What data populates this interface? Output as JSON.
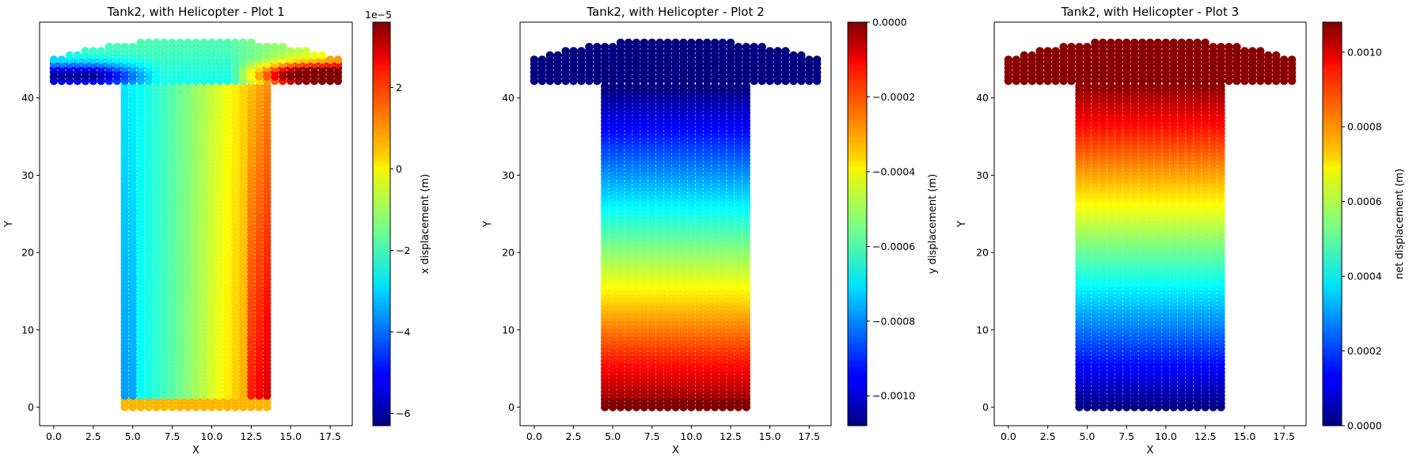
{
  "chart_data": [
    {
      "type": "scatter",
      "title": "Tank2, with Helicopter - Plot 1",
      "xlabel": "X",
      "ylabel": "Y",
      "xlim": [
        -0.9,
        18.9
      ],
      "ylim": [
        -2.4,
        49.8
      ],
      "xticks": [
        0.0,
        2.5,
        5.0,
        7.5,
        10.0,
        12.5,
        15.0,
        17.5
      ],
      "xtick_labels": [
        "0.0",
        "2.5",
        "5.0",
        "7.5",
        "10.0",
        "12.5",
        "15.0",
        "17.5"
      ],
      "yticks": [
        0,
        10,
        20,
        30,
        40
      ],
      "ytick_labels": [
        "0",
        "10",
        "20",
        "30",
        "40"
      ],
      "colorbar": {
        "label": "x displacement (m)",
        "min": -6.3e-05,
        "max": 3.6e-05,
        "ticks": [
          -6e-05,
          -4e-05,
          -2e-05,
          0,
          2e-05
        ],
        "tick_labels": [
          "−6",
          "−4",
          "−2",
          "0",
          "2"
        ],
        "offset_text": "1e−5",
        "colormap": "jet"
      },
      "field": "x_displacement",
      "shape": {
        "stem": {
          "x": [
            4.5,
            13.5
          ],
          "y": [
            0,
            41.5
          ]
        },
        "top": {
          "x": [
            0,
            18
          ],
          "y": [
            42.2,
            47.5
          ]
        }
      }
    },
    {
      "type": "scatter",
      "title": "Tank2, with Helicopter - Plot 2",
      "xlabel": "X",
      "ylabel": "Y",
      "xlim": [
        -0.9,
        18.9
      ],
      "ylim": [
        -2.4,
        49.8
      ],
      "xticks": [
        0.0,
        2.5,
        5.0,
        7.5,
        10.0,
        12.5,
        15.0,
        17.5
      ],
      "xtick_labels": [
        "0.0",
        "2.5",
        "5.0",
        "7.5",
        "10.0",
        "12.5",
        "15.0",
        "17.5"
      ],
      "yticks": [
        0,
        10,
        20,
        30,
        40
      ],
      "ytick_labels": [
        "0",
        "10",
        "20",
        "30",
        "40"
      ],
      "colorbar": {
        "label": "y displacement (m)",
        "min": -0.00108,
        "max": 0.0,
        "ticks": [
          -0.001,
          -0.0008,
          -0.0006,
          -0.0004,
          -0.0002,
          0.0
        ],
        "tick_labels": [
          "−0.0010",
          "−0.0008",
          "−0.0006",
          "−0.0004",
          "−0.0002",
          "0.0000"
        ],
        "offset_text": "",
        "colormap": "jet"
      },
      "field": "y_displacement",
      "shape": {
        "stem": {
          "x": [
            4.5,
            13.5
          ],
          "y": [
            0,
            41.5
          ]
        },
        "top": {
          "x": [
            0,
            18
          ],
          "y": [
            42.2,
            47.5
          ]
        }
      }
    },
    {
      "type": "scatter",
      "title": "Tank2, with Helicopter - Plot 3",
      "xlabel": "X",
      "ylabel": "Y",
      "xlim": [
        -0.9,
        18.9
      ],
      "ylim": [
        -2.4,
        49.8
      ],
      "xticks": [
        0.0,
        2.5,
        5.0,
        7.5,
        10.0,
        12.5,
        15.0,
        17.5
      ],
      "xtick_labels": [
        "0.0",
        "2.5",
        "5.0",
        "7.5",
        "10.0",
        "12.5",
        "15.0",
        "17.5"
      ],
      "yticks": [
        0,
        10,
        20,
        30,
        40
      ],
      "ytick_labels": [
        "0",
        "10",
        "20",
        "30",
        "40"
      ],
      "colorbar": {
        "label": "net displacement (m)",
        "min": 0.0,
        "max": 0.00108,
        "ticks": [
          0.0,
          0.0002,
          0.0004,
          0.0006,
          0.0008,
          0.001
        ],
        "tick_labels": [
          "0.0000",
          "0.0002",
          "0.0004",
          "0.0006",
          "0.0008",
          "0.0010"
        ],
        "offset_text": "",
        "colormap": "jet"
      },
      "field": "net_displacement",
      "shape": {
        "stem": {
          "x": [
            4.5,
            13.5
          ],
          "y": [
            0,
            41.5
          ]
        },
        "top": {
          "x": [
            0,
            18
          ],
          "y": [
            42.2,
            47.5
          ]
        }
      }
    }
  ]
}
